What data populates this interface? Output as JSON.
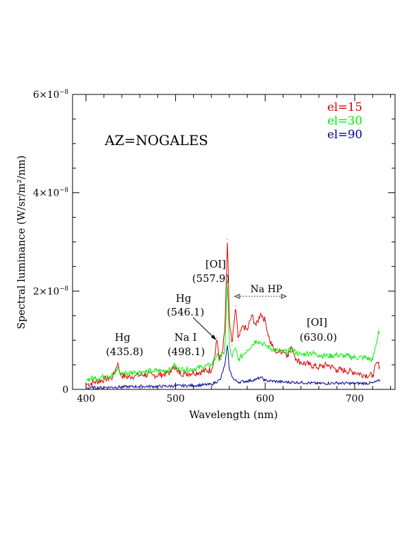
{
  "chart_data": {
    "type": "line",
    "title": "AZ=NOGALES",
    "xlabel": "Wavelength (nm)",
    "ylabel": "Spectral luminance (W/sr/m²/nm)",
    "xlim": [
      385,
      745
    ],
    "ylim": [
      0,
      6e-08
    ],
    "x_ticks": [
      {
        "value": 400,
        "label": "400"
      },
      {
        "value": 500,
        "label": "500"
      },
      {
        "value": 600,
        "label": "600"
      },
      {
        "value": 700,
        "label": "700"
      }
    ],
    "y_ticks": [
      {
        "value": 0,
        "base": "0",
        "exp": ""
      },
      {
        "value": 2e-08,
        "base": "2×10",
        "exp": "−8"
      },
      {
        "value": 4e-08,
        "base": "4×10",
        "exp": "−8"
      },
      {
        "value": 6e-08,
        "base": "6×10",
        "exp": "−8"
      }
    ],
    "legend_position": "top-right",
    "series": [
      {
        "name": "el=15",
        "color": "#dd0000",
        "x": [
          401,
          410,
          420,
          430,
          433,
          435.8,
          438,
          445,
          455,
          465,
          475,
          485,
          495,
          498.1,
          502,
          510,
          520,
          530,
          540,
          543,
          546.1,
          549,
          552,
          555,
          557.9,
          560,
          563,
          567,
          570,
          575,
          580,
          585,
          590,
          595,
          600,
          605,
          610,
          615,
          620,
          625,
          630,
          635,
          640,
          650,
          660,
          670,
          680,
          690,
          700,
          710,
          720,
          725,
          728
        ],
        "y": [
          1e-09,
          1.5e-09,
          2e-09,
          2.5e-09,
          4e-09,
          5.5e-09,
          3e-09,
          2.5e-09,
          2.8e-09,
          3e-09,
          2.9e-09,
          3e-09,
          3.5e-09,
          5e-09,
          3.5e-09,
          3.2e-09,
          3.4e-09,
          3.6e-09,
          4e-09,
          6e-09,
          1.05e-08,
          6e-09,
          7.5e-09,
          1.2e-08,
          3.05e-08,
          1.4e-08,
          9e-09,
          1.7e-08,
          1e-08,
          1.3e-08,
          1.2e-08,
          1.5e-08,
          1.3e-08,
          1.55e-08,
          1.4e-08,
          1e-08,
          8e-09,
          7.5e-09,
          8e-09,
          7e-09,
          8.5e-09,
          6e-09,
          5.5e-09,
          5e-09,
          4.5e-09,
          5e-09,
          4e-09,
          3.8e-09,
          3.5e-09,
          3e-09,
          2.8e-09,
          5.5e-09,
          4.5e-09
        ]
      },
      {
        "name": "el=30",
        "color": "#00ee00",
        "x": [
          401,
          410,
          420,
          430,
          433,
          435.8,
          438,
          445,
          455,
          465,
          475,
          485,
          495,
          498.1,
          502,
          510,
          520,
          530,
          540,
          546.1,
          550,
          555,
          557.9,
          560,
          563,
          567,
          570,
          575,
          580,
          590,
          595,
          600,
          610,
          620,
          630,
          640,
          650,
          660,
          670,
          680,
          690,
          700,
          710,
          720,
          725,
          727,
          728
        ],
        "y": [
          2e-09,
          2.3e-09,
          2.6e-09,
          2.9e-09,
          3.5e-09,
          4.5e-09,
          3.2e-09,
          3.3e-09,
          3.5e-09,
          3.6e-09,
          3.7e-09,
          3.8e-09,
          4e-09,
          5e-09,
          4.2e-09,
          4e-09,
          4.2e-09,
          4.5e-09,
          5e-09,
          7e-09,
          6e-09,
          8e-09,
          2.2e-08,
          9e-09,
          6.5e-09,
          8.5e-09,
          6e-09,
          7e-09,
          8e-09,
          1e-08,
          9.5e-09,
          9e-09,
          8e-09,
          7.5e-09,
          8e-09,
          7e-09,
          7.5e-09,
          7e-09,
          6.8e-09,
          7e-09,
          6.8e-09,
          6.5e-09,
          6.5e-09,
          6e-09,
          1e-08,
          1.25e-08,
          9.5e-09
        ]
      },
      {
        "name": "el=90",
        "color": "#000099",
        "x": [
          401,
          420,
          440,
          460,
          480,
          500,
          520,
          540,
          550,
          555,
          557.9,
          560,
          565,
          570,
          580,
          590,
          595,
          600,
          620,
          640,
          660,
          680,
          700,
          720,
          728
        ],
        "y": [
          3e-10,
          4e-10,
          5e-10,
          6e-10,
          6e-10,
          7e-10,
          8e-10,
          1e-09,
          2e-09,
          5e-09,
          9e-09,
          4e-09,
          2e-09,
          1.5e-09,
          1.7e-09,
          2e-09,
          2.5e-09,
          1.8e-09,
          1.5e-09,
          1.4e-09,
          1.2e-09,
          1.3e-09,
          1.2e-09,
          1.3e-09,
          1.8e-09
        ]
      }
    ],
    "annotations": [
      {
        "line1": "Hg",
        "line2": "(435.8)"
      },
      {
        "line1": "Na I",
        "line2": "(498.1)"
      },
      {
        "line1": "Hg",
        "line2": "(546.1)"
      },
      {
        "line1": "[OI]",
        "line2": "(557.9)"
      },
      {
        "line1": "Na HP",
        "line2": ""
      },
      {
        "line1": "[OI]",
        "line2": "(630.0)"
      }
    ]
  }
}
